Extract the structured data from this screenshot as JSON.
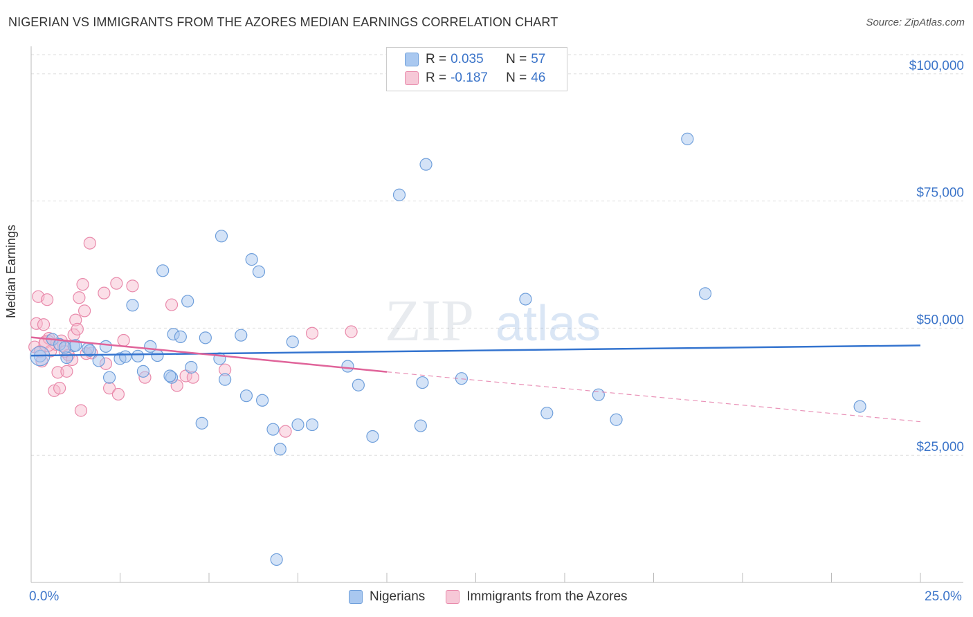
{
  "header": {
    "title": "NIGERIAN VS IMMIGRANTS FROM THE AZORES MEDIAN EARNINGS CORRELATION CHART",
    "source": "Source: ZipAtlas.com"
  },
  "legend": {
    "rows": [
      {
        "r_label": "R = ",
        "r_value": "0.035",
        "n_label": "N = ",
        "n_value": "57"
      },
      {
        "r_label": "R = ",
        "r_value": "-0.187",
        "n_label": "N = ",
        "n_value": "46"
      }
    ]
  },
  "watermark": {
    "zip": "ZIP",
    "atlas": "atlas"
  },
  "colors": {
    "blue_fill": "#a9c8f0",
    "blue_stroke": "#6f9fdb",
    "blue_line": "#3474cf",
    "pink_fill": "#f6b8cd",
    "pink_stroke": "#e98aab",
    "pink_line": "#e0649a",
    "axis_text": "#3b74c9",
    "grid": "#dddddd"
  },
  "chart_data": {
    "type": "scatter",
    "title": "NIGERIAN VS IMMIGRANTS FROM THE AZORES MEDIAN EARNINGS CORRELATION CHART",
    "xlabel": "",
    "ylabel": "Median Earnings",
    "xlim": [
      0,
      25
    ],
    "ylim": [
      0,
      105000
    ],
    "x_tick_labels": [
      "0.0%",
      "25.0%"
    ],
    "y_ticks": [
      25000,
      50000,
      75000,
      100000
    ],
    "y_tick_labels": [
      "$25,000",
      "$50,000",
      "$75,000",
      "$100,000"
    ],
    "grid": true,
    "legend_position": "top-center",
    "series": [
      {
        "name": "Nigerians",
        "color": "#a9c8f0",
        "points": [
          [
            0.25,
            44500
          ],
          [
            0.6,
            47800
          ],
          [
            0.8,
            46800
          ],
          [
            1.0,
            44200
          ],
          [
            1.2,
            46500
          ],
          [
            1.6,
            46000
          ],
          [
            1.65,
            45600
          ],
          [
            1.9,
            43600
          ],
          [
            2.1,
            46400
          ],
          [
            2.2,
            40300
          ],
          [
            2.5,
            44000
          ],
          [
            2.65,
            44400
          ],
          [
            2.85,
            54500
          ],
          [
            3.0,
            44500
          ],
          [
            3.15,
            41500
          ],
          [
            3.35,
            46400
          ],
          [
            3.55,
            44600
          ],
          [
            3.7,
            61300
          ],
          [
            3.95,
            40300
          ],
          [
            4.0,
            48800
          ],
          [
            4.2,
            48300
          ],
          [
            4.4,
            55300
          ],
          [
            4.5,
            42300
          ],
          [
            4.8,
            31300
          ],
          [
            4.9,
            48100
          ],
          [
            5.3,
            44000
          ],
          [
            5.35,
            68100
          ],
          [
            5.45,
            39900
          ],
          [
            5.9,
            48600
          ],
          [
            6.05,
            36700
          ],
          [
            6.2,
            63500
          ],
          [
            6.4,
            61100
          ],
          [
            6.5,
            35800
          ],
          [
            6.8,
            30100
          ],
          [
            7.0,
            26200
          ],
          [
            6.9,
            4500
          ],
          [
            7.35,
            47300
          ],
          [
            7.5,
            31000
          ],
          [
            7.9,
            31000
          ],
          [
            8.9,
            42500
          ],
          [
            9.2,
            38800
          ],
          [
            9.6,
            28700
          ],
          [
            10.35,
            76200
          ],
          [
            11.1,
            82200
          ],
          [
            10.95,
            30800
          ],
          [
            11.0,
            39300
          ],
          [
            12.1,
            40100
          ],
          [
            13.9,
            55700
          ],
          [
            14.5,
            33300
          ],
          [
            15.95,
            36900
          ],
          [
            16.45,
            32000
          ],
          [
            18.45,
            87200
          ],
          [
            18.95,
            56800
          ],
          [
            23.3,
            34600
          ],
          [
            1.25,
            46600
          ],
          [
            0.95,
            46200
          ],
          [
            3.9,
            40600
          ]
        ],
        "trend": {
          "x0": 0,
          "y0": 44600,
          "x1": 25,
          "y1": 46600
        }
      },
      {
        "name": "Immigrants from the Azores",
        "color": "#f6b8cd",
        "points": [
          [
            0.1,
            46300
          ],
          [
            0.15,
            50900
          ],
          [
            0.2,
            56200
          ],
          [
            0.25,
            45400
          ],
          [
            0.3,
            43500
          ],
          [
            0.35,
            50700
          ],
          [
            0.4,
            47200
          ],
          [
            0.45,
            55600
          ],
          [
            0.55,
            45500
          ],
          [
            0.65,
            37700
          ],
          [
            0.75,
            41300
          ],
          [
            0.8,
            38200
          ],
          [
            0.85,
            47500
          ],
          [
            0.9,
            46500
          ],
          [
            0.95,
            45400
          ],
          [
            1.0,
            41500
          ],
          [
            1.05,
            44700
          ],
          [
            1.15,
            43800
          ],
          [
            1.2,
            48700
          ],
          [
            1.25,
            51600
          ],
          [
            1.3,
            49800
          ],
          [
            1.35,
            56000
          ],
          [
            1.4,
            33800
          ],
          [
            1.45,
            58600
          ],
          [
            1.5,
            53400
          ],
          [
            1.7,
            45100
          ],
          [
            1.65,
            66700
          ],
          [
            2.05,
            56900
          ],
          [
            2.1,
            43000
          ],
          [
            2.2,
            38200
          ],
          [
            2.4,
            58800
          ],
          [
            2.45,
            37000
          ],
          [
            2.6,
            47600
          ],
          [
            2.85,
            58300
          ],
          [
            3.2,
            40300
          ],
          [
            3.95,
            54600
          ],
          [
            4.1,
            38700
          ],
          [
            4.35,
            40600
          ],
          [
            4.55,
            40300
          ],
          [
            5.45,
            41800
          ],
          [
            7.15,
            29700
          ],
          [
            7.9,
            49000
          ],
          [
            9.0,
            49300
          ],
          [
            0.5,
            48000
          ],
          [
            0.7,
            46800
          ],
          [
            1.55,
            45000
          ]
        ],
        "trend_solid": {
          "x0": 0,
          "y0": 48200,
          "x1": 10,
          "y1": 41400
        },
        "trend_dashed": {
          "x0": 10,
          "y0": 41400,
          "x1": 25,
          "y1": 31600
        }
      }
    ]
  },
  "bottom_legend": {
    "items": [
      "Nigerians",
      "Immigrants from the Azores"
    ]
  }
}
